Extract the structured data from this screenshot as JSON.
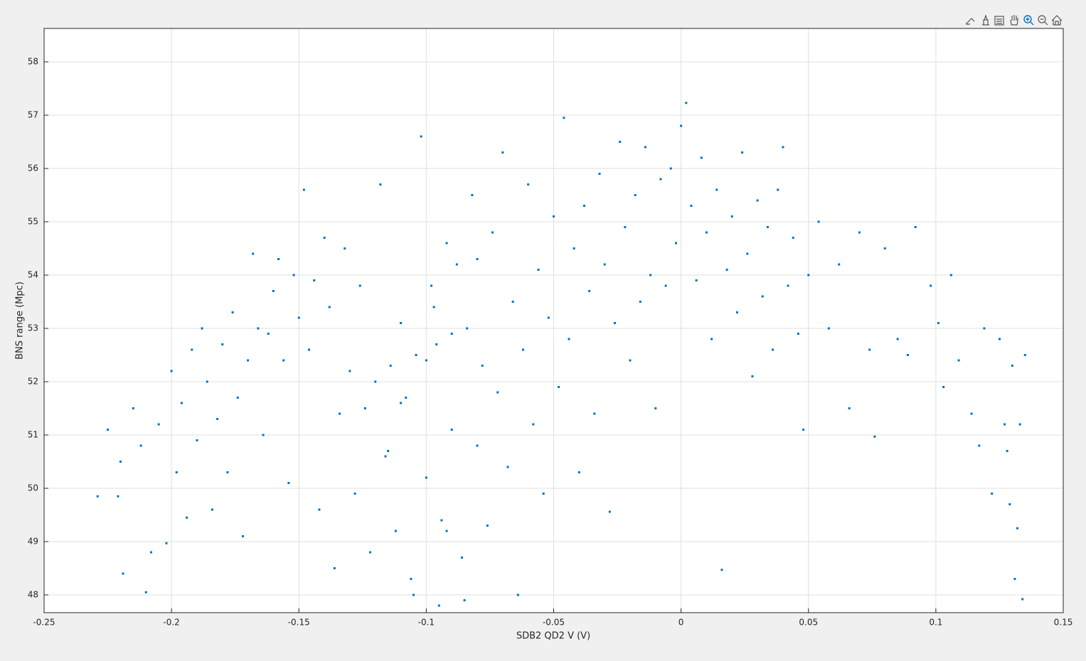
{
  "chart_data": {
    "type": "scatter",
    "xlabel": "SDB2 QD2 V (V)",
    "ylabel": "BNS range (Mpc)",
    "color": "#0072bd",
    "grid": true,
    "xlim": [
      -0.25,
      0.15
    ],
    "ylim": [
      47.667,
      58.627
    ],
    "xticks": [
      -0.25,
      -0.2,
      -0.15,
      -0.1,
      -0.05,
      0,
      0.05,
      0.1,
      0.15
    ],
    "yticks": [
      48,
      49,
      50,
      51,
      52,
      53,
      54,
      55,
      56,
      57,
      58
    ],
    "x": [
      -0.229,
      -0.225,
      -0.221,
      -0.22,
      -0.219,
      -0.215,
      -0.212,
      -0.21,
      -0.208,
      -0.205,
      -0.202,
      -0.2,
      -0.198,
      -0.196,
      -0.194,
      -0.192,
      -0.19,
      -0.188,
      -0.186,
      -0.184,
      -0.182,
      -0.18,
      -0.178,
      -0.176,
      -0.174,
      -0.172,
      -0.17,
      -0.168,
      -0.166,
      -0.164,
      -0.162,
      -0.16,
      -0.158,
      -0.156,
      -0.154,
      -0.152,
      -0.15,
      -0.148,
      -0.146,
      -0.144,
      -0.142,
      -0.14,
      -0.138,
      -0.136,
      -0.134,
      -0.132,
      -0.13,
      -0.128,
      -0.126,
      -0.124,
      -0.122,
      -0.12,
      -0.118,
      -0.116,
      -0.114,
      -0.112,
      -0.11,
      -0.108,
      -0.106,
      -0.104,
      -0.102,
      -0.1,
      -0.098,
      -0.096,
      -0.094,
      -0.092,
      -0.09,
      -0.088,
      -0.086,
      -0.084,
      -0.082,
      -0.08,
      -0.078,
      -0.076,
      -0.074,
      -0.072,
      -0.07,
      -0.068,
      -0.066,
      -0.064,
      -0.062,
      -0.06,
      -0.058,
      -0.056,
      -0.054,
      -0.052,
      -0.05,
      -0.048,
      -0.046,
      -0.044,
      -0.042,
      -0.04,
      -0.038,
      -0.036,
      -0.034,
      -0.032,
      -0.03,
      -0.028,
      -0.026,
      -0.024,
      -0.022,
      -0.02,
      -0.018,
      -0.016,
      -0.014,
      -0.012,
      -0.01,
      -0.008,
      -0.006,
      -0.004,
      -0.002,
      0,
      0.002,
      0.004,
      0.006,
      0.008,
      0.01,
      0.012,
      0.014,
      0.016,
      0.018,
      0.02,
      0.022,
      0.024,
      0.026,
      0.028,
      0.03,
      0.032,
      0.034,
      0.036,
      0.038,
      0.04,
      0.042,
      0.044,
      0.046,
      0.048,
      0.05,
      0.054,
      0.058,
      0.062,
      0.066,
      0.07,
      0.074,
      0.076,
      0.08,
      0.085,
      0.089,
      0.092,
      0.098,
      0.101,
      0.103,
      0.106,
      0.109,
      0.114,
      0.117,
      0.119,
      0.122,
      0.125,
      0.127,
      0.128,
      0.129,
      0.13,
      0.131,
      0.132,
      0.133,
      0.134,
      0.135,
      -0.095,
      -0.085,
      -0.105,
      -0.09,
      -0.1,
      -0.11,
      -0.08,
      -0.115,
      -0.092,
      -0.097
    ],
    "y": [
      49.85,
      51.1,
      49.85,
      50.5,
      48.4,
      51.5,
      50.8,
      48.05,
      48.8,
      51.2,
      48.97,
      52.2,
      50.3,
      51.6,
      49.45,
      52.6,
      50.9,
      53.0,
      52.0,
      49.6,
      51.3,
      52.7,
      50.3,
      53.3,
      51.7,
      49.1,
      52.4,
      54.4,
      53.0,
      51.0,
      52.9,
      53.7,
      54.3,
      52.4,
      50.1,
      54.0,
      53.2,
      55.6,
      52.6,
      53.9,
      49.6,
      54.7,
      53.4,
      48.5,
      51.4,
      54.5,
      52.2,
      49.9,
      53.8,
      51.5,
      48.8,
      52.0,
      55.7,
      50.6,
      52.3,
      49.2,
      53.1,
      51.7,
      48.3,
      52.5,
      56.6,
      50.2,
      53.8,
      52.7,
      49.4,
      54.6,
      51.1,
      54.2,
      48.7,
      53.0,
      55.5,
      50.8,
      52.3,
      49.3,
      54.8,
      51.8,
      56.3,
      50.4,
      53.5,
      48.0,
      52.6,
      55.7,
      51.2,
      54.1,
      49.9,
      53.2,
      55.1,
      51.9,
      56.95,
      52.8,
      54.5,
      50.3,
      55.3,
      53.7,
      51.4,
      55.9,
      54.2,
      49.56,
      53.1,
      56.5,
      54.9,
      52.4,
      55.5,
      53.5,
      56.4,
      54.0,
      51.5,
      55.8,
      53.8,
      56.0,
      54.6,
      56.8,
      57.23,
      55.3,
      53.9,
      56.2,
      54.8,
      52.8,
      55.6,
      48.47,
      54.1,
      55.1,
      53.3,
      56.3,
      54.4,
      52.1,
      55.4,
      53.6,
      54.9,
      52.6,
      55.6,
      56.4,
      53.8,
      54.7,
      52.9,
      51.1,
      54.0,
      55.0,
      53.0,
      54.2,
      51.5,
      54.8,
      52.6,
      50.97,
      54.5,
      52.8,
      52.5,
      54.9,
      53.8,
      53.1,
      51.9,
      54.0,
      52.4,
      51.4,
      50.8,
      53.0,
      49.9,
      52.8,
      51.2,
      50.7,
      49.7,
      52.3,
      48.3,
      49.25,
      51.2,
      47.92,
      52.5,
      47.8,
      47.9,
      48.0,
      52.9,
      52.4,
      51.6,
      54.3,
      50.7,
      49.2,
      53.4
    ]
  }
}
